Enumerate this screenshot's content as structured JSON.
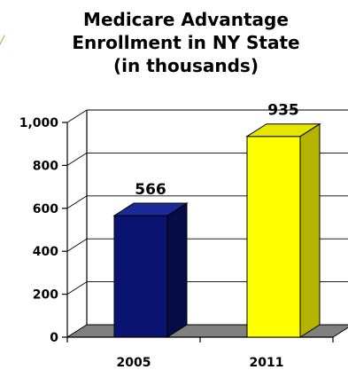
{
  "chart_data": {
    "type": "bar",
    "title_lines": [
      "Medicare Advantage",
      "Enrollment in NY State",
      "(in thousands)"
    ],
    "categories": [
      "2005",
      "2011"
    ],
    "values": [
      566,
      935
    ],
    "data_labels": [
      "566",
      "935"
    ],
    "ylim": [
      0,
      1000
    ],
    "yticks": [
      0,
      200,
      400,
      600,
      800,
      1000
    ],
    "ytick_labels": [
      "0",
      "200",
      "400",
      "600",
      "800",
      "1,000"
    ],
    "grid": true,
    "legend": "none",
    "bar_colors": [
      "#0a1470",
      "#ffff00"
    ],
    "bar_side_colors": [
      "#060c45",
      "#b4b400"
    ],
    "bar_top_colors": [
      "#1a2a9a",
      "#e6e600"
    ],
    "floor_color": "#808080"
  },
  "decor": {
    "corner_mark": "/"
  }
}
